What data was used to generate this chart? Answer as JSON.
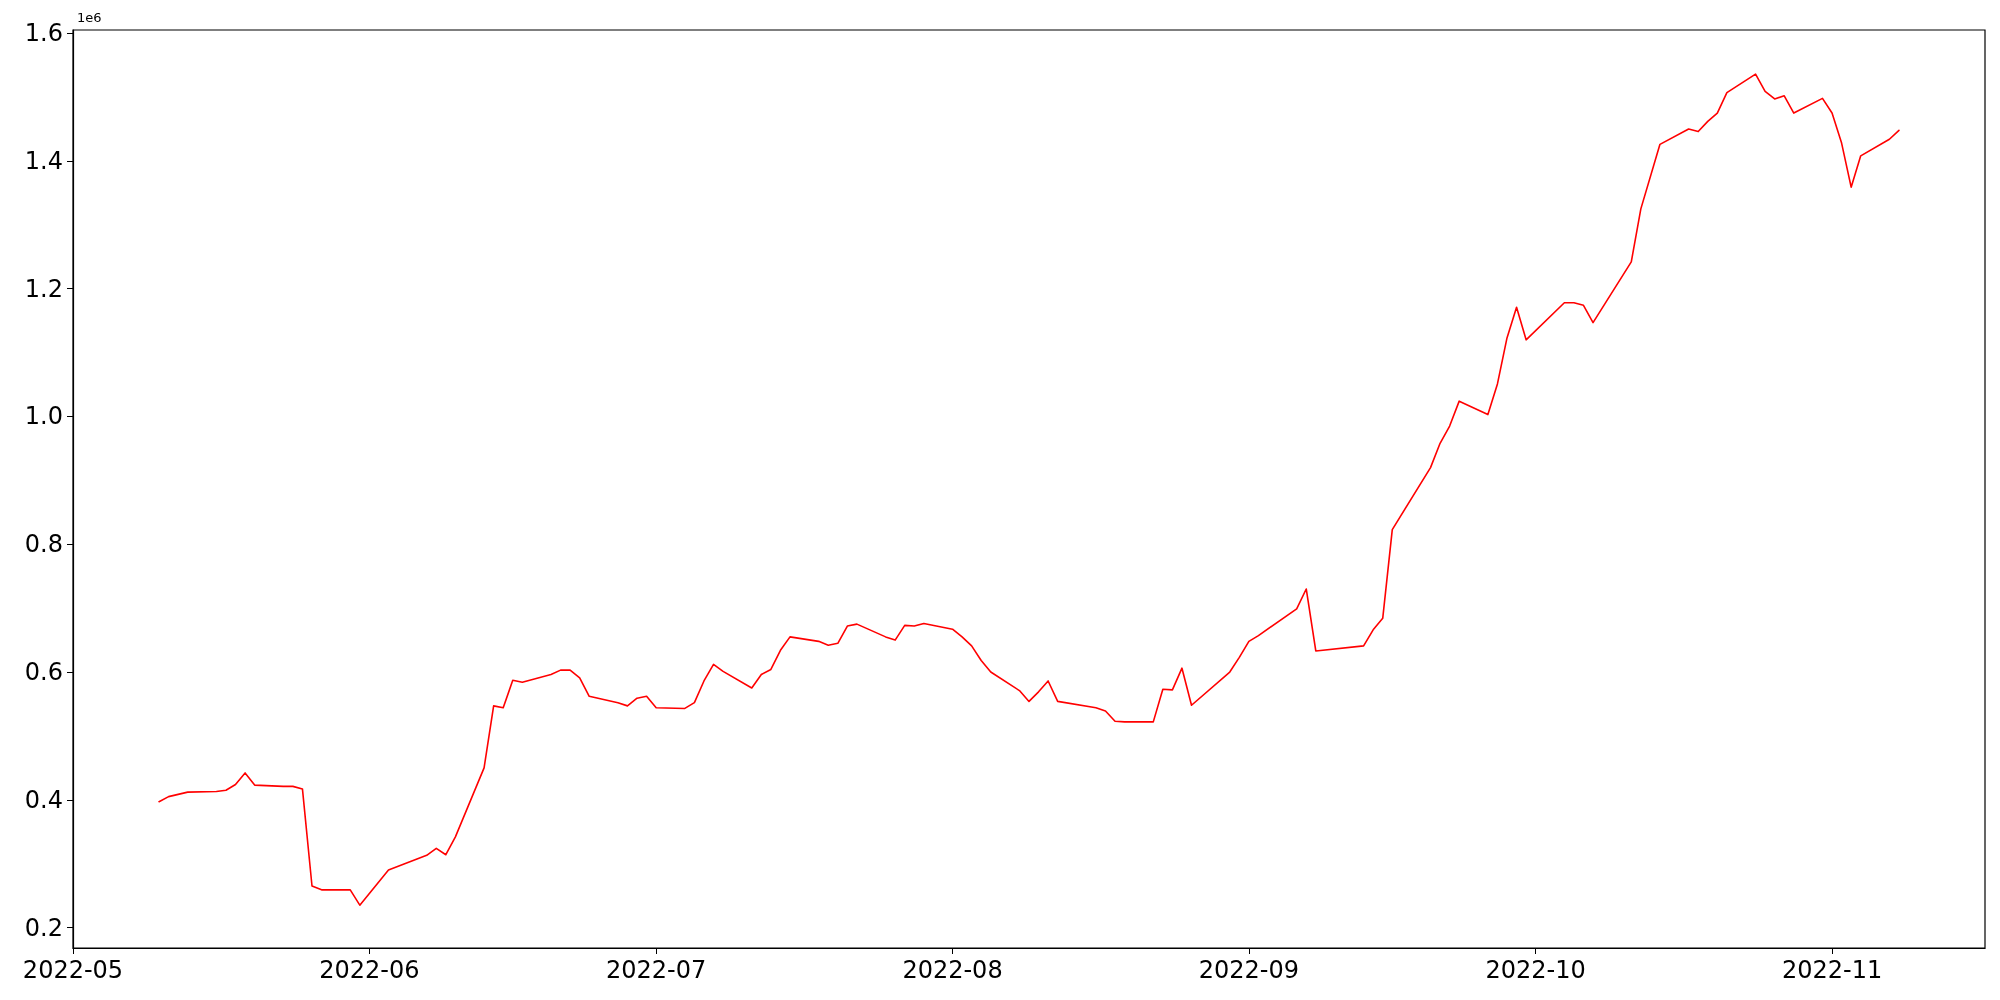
{
  "chart_data": {
    "type": "line",
    "annotations": [
      "1e6"
    ],
    "x": [
      "2022-05-10",
      "2022-05-11",
      "2022-05-13",
      "2022-05-16",
      "2022-05-17",
      "2022-05-18",
      "2022-05-19",
      "2022-05-20",
      "2022-05-23",
      "2022-05-24",
      "2022-05-25",
      "2022-05-26",
      "2022-05-27",
      "2022-05-30",
      "2022-05-31",
      "2022-06-03",
      "2022-06-07",
      "2022-06-08",
      "2022-06-09",
      "2022-06-10",
      "2022-06-13",
      "2022-06-14",
      "2022-06-15",
      "2022-06-16",
      "2022-06-17",
      "2022-06-20",
      "2022-06-21",
      "2022-06-22",
      "2022-06-23",
      "2022-06-24",
      "2022-06-27",
      "2022-06-28",
      "2022-06-29",
      "2022-06-30",
      "2022-07-01",
      "2022-07-04",
      "2022-07-05",
      "2022-07-06",
      "2022-07-07",
      "2022-07-08",
      "2022-07-11",
      "2022-07-12",
      "2022-07-13",
      "2022-07-14",
      "2022-07-15",
      "2022-07-18",
      "2022-07-19",
      "2022-07-20",
      "2022-07-21",
      "2022-07-22",
      "2022-07-25",
      "2022-07-26",
      "2022-07-27",
      "2022-07-28",
      "2022-07-29",
      "2022-08-01",
      "2022-08-02",
      "2022-08-03",
      "2022-08-04",
      "2022-08-05",
      "2022-08-08",
      "2022-08-09",
      "2022-08-10",
      "2022-08-11",
      "2022-08-12",
      "2022-08-16",
      "2022-08-17",
      "2022-08-18",
      "2022-08-19",
      "2022-08-22",
      "2022-08-23",
      "2022-08-24",
      "2022-08-25",
      "2022-08-26",
      "2022-08-30",
      "2022-08-31",
      "2022-09-01",
      "2022-09-02",
      "2022-09-06",
      "2022-09-07",
      "2022-09-08",
      "2022-09-13",
      "2022-09-14",
      "2022-09-15",
      "2022-09-16",
      "2022-09-20",
      "2022-09-21",
      "2022-09-22",
      "2022-09-23",
      "2022-09-26",
      "2022-09-27",
      "2022-09-28",
      "2022-09-29",
      "2022-09-30",
      "2022-10-04",
      "2022-10-05",
      "2022-10-06",
      "2022-10-07",
      "2022-10-11",
      "2022-10-12",
      "2022-10-14",
      "2022-10-17",
      "2022-10-18",
      "2022-10-19",
      "2022-10-20",
      "2022-10-21",
      "2022-10-24",
      "2022-10-25",
      "2022-10-26",
      "2022-10-27",
      "2022-10-28",
      "2022-10-31",
      "2022-11-01",
      "2022-11-02",
      "2022-11-03",
      "2022-11-04",
      "2022-11-07",
      "2022-11-08"
    ],
    "series": [
      {
        "color": "#ff0000",
        "values": [
          0.397,
          0.405,
          0.412,
          0.413,
          0.415,
          0.424,
          0.442,
          0.423,
          0.421,
          0.421,
          0.417,
          0.265,
          0.259,
          0.259,
          0.235,
          0.29,
          0.313,
          0.324,
          0.314,
          0.342,
          0.45,
          0.547,
          0.544,
          0.587,
          0.584,
          0.596,
          0.603,
          0.603,
          0.591,
          0.562,
          0.552,
          0.547,
          0.559,
          0.562,
          0.544,
          0.543,
          0.552,
          0.586,
          0.612,
          0.601,
          0.575,
          0.596,
          0.604,
          0.634,
          0.655,
          0.648,
          0.642,
          0.645,
          0.672,
          0.675,
          0.655,
          0.65,
          0.673,
          0.672,
          0.676,
          0.667,
          0.655,
          0.641,
          0.618,
          0.6,
          0.571,
          0.554,
          0.569,
          0.586,
          0.554,
          0.544,
          0.539,
          0.523,
          0.522,
          0.522,
          0.573,
          0.572,
          0.606,
          0.548,
          0.6,
          0.623,
          0.648,
          0.657,
          0.699,
          0.73,
          0.633,
          0.641,
          0.666,
          0.684,
          0.823,
          0.92,
          0.958,
          0.985,
          1.024,
          1.003,
          1.051,
          1.123,
          1.171,
          1.12,
          1.178,
          1.178,
          1.174,
          1.147,
          1.242,
          1.325,
          1.426,
          1.45,
          1.446,
          1.462,
          1.475,
          1.507,
          1.536,
          1.509,
          1.497,
          1.502,
          1.475,
          1.498,
          1.475,
          1.428,
          1.359,
          1.408,
          1.434,
          1.448
        ]
      }
    ],
    "xlim": [
      "2022-05-01",
      "2022-11-17"
    ],
    "xticks": [
      {
        "value": "2022-05-01",
        "label": "2022-05"
      },
      {
        "value": "2022-06-01",
        "label": "2022-06"
      },
      {
        "value": "2022-07-01",
        "label": "2022-07"
      },
      {
        "value": "2022-08-01",
        "label": "2022-08"
      },
      {
        "value": "2022-09-01",
        "label": "2022-09"
      },
      {
        "value": "2022-10-01",
        "label": "2022-10"
      },
      {
        "value": "2022-11-01",
        "label": "2022-11"
      }
    ],
    "ylim": [
      0.168,
      1.605
    ],
    "yticks": [
      0.2,
      0.4,
      0.6,
      0.8,
      {
        "value": 1,
        "label": "1.0"
      },
      1.2,
      1.4,
      1.6
    ],
    "grid": false,
    "marker": "none",
    "line_style": "solid"
  }
}
